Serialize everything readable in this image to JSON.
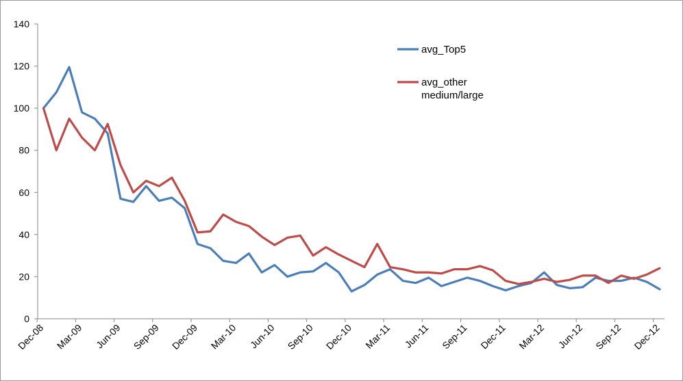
{
  "chart_data": {
    "type": "line",
    "title": "",
    "xlabel": "",
    "ylabel": "",
    "ylim": [
      0,
      140
    ],
    "yticks": [
      0,
      20,
      40,
      60,
      80,
      100,
      120,
      140
    ],
    "grid": false,
    "legend_position": "top-right",
    "x": [
      "Dec-08",
      "Jan-09",
      "Feb-09",
      "Mar-09",
      "Apr-09",
      "May-09",
      "Jun-09",
      "Jul-09",
      "Aug-09",
      "Sep-09",
      "Oct-09",
      "Nov-09",
      "Dec-09",
      "Jan-10",
      "Feb-10",
      "Mar-10",
      "Apr-10",
      "May-10",
      "Jun-10",
      "Jul-10",
      "Aug-10",
      "Sep-10",
      "Oct-10",
      "Nov-10",
      "Dec-10",
      "Jan-11",
      "Feb-11",
      "Mar-11",
      "Apr-11",
      "May-11",
      "Jun-11",
      "Jul-11",
      "Aug-11",
      "Sep-11",
      "Oct-11",
      "Nov-11",
      "Dec-11",
      "Jan-12",
      "Feb-12",
      "Mar-12",
      "Apr-12",
      "May-12",
      "Jun-12",
      "Jul-12",
      "Aug-12",
      "Sep-12",
      "Oct-12",
      "Nov-12",
      "Dec-12"
    ],
    "x_tick_labels": [
      "Dec-08",
      "Mar-09",
      "Jun-09",
      "Sep-09",
      "Dec-09",
      "Mar-10",
      "Jun-10",
      "Sep-10",
      "Dec-10",
      "Mar-11",
      "Jun-11",
      "Sep-11",
      "Dec-11",
      "Mar-12",
      "Jun-12",
      "Sep-12",
      "Dec-12"
    ],
    "series": [
      {
        "name": "avg_Top5",
        "color": "#4a7ebb",
        "values": [
          100,
          107.5,
          119.5,
          98,
          95,
          88,
          57,
          55.5,
          63,
          56,
          57.5,
          52.5,
          35.5,
          33.5,
          27.5,
          26.5,
          31,
          22,
          25.5,
          20,
          22,
          22.5,
          26.5,
          22,
          13,
          16,
          21,
          23.5,
          18,
          17,
          19.5,
          15.5,
          17.5,
          19.5,
          18,
          15.5,
          13.5,
          15.5,
          17,
          22,
          16,
          14.5,
          15,
          19.5,
          18,
          18,
          19.5,
          17.5,
          14
        ]
      },
      {
        "name": "avg_other\nmedium/large",
        "name_lines": [
          "avg_other",
          "medium/large"
        ],
        "color": "#be4b48",
        "values": [
          100,
          80,
          95,
          86,
          80,
          92.5,
          73,
          60,
          65.5,
          63,
          67,
          56,
          41,
          41.5,
          49.5,
          46,
          44,
          39,
          35,
          38.5,
          39.5,
          30,
          34,
          30.5,
          27.5,
          24.5,
          35.5,
          24.5,
          23.5,
          22,
          22,
          21.5,
          23.5,
          23.5,
          25,
          23,
          18,
          16.5,
          17.5,
          19,
          17.5,
          18.5,
          20.5,
          20.5,
          17,
          20.5,
          19,
          21,
          24
        ]
      }
    ]
  }
}
